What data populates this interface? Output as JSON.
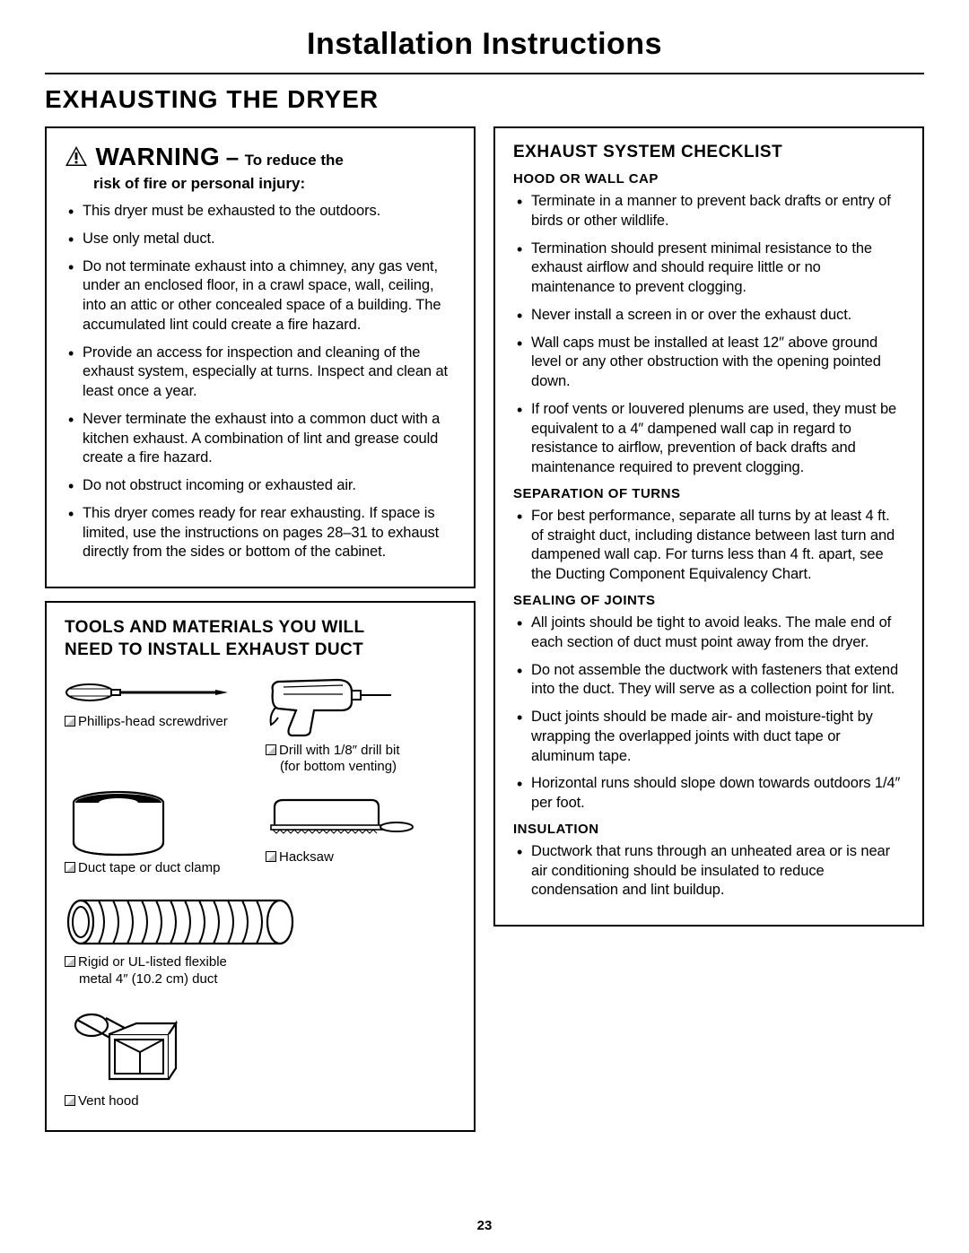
{
  "page_title": "Installation Instructions",
  "section_title": "EXHAUSTING THE DRYER",
  "page_number": "23",
  "warning": {
    "word": "WARNING",
    "tail": "To reduce the",
    "sub": "risk of fire or personal injury:",
    "bullets": [
      "This dryer must be exhausted to the outdoors.",
      "Use only metal duct.",
      "Do not terminate exhaust into a chimney, any gas vent, under an enclosed floor, in a crawl space, wall, ceiling, into an attic or other concealed space of a building. The accumulated lint could create a fire hazard.",
      "Provide an access for inspection and cleaning of the exhaust system, especially at turns. Inspect and clean at least once a year.",
      "Never terminate the exhaust into a common duct with a kitchen exhaust. A combination of lint and grease could create a fire hazard.",
      "Do not obstruct incoming or exhausted air.",
      "This dryer comes ready for rear exhausting. If space is limited, use the instructions on pages 28–31 to exhaust directly from the sides or bottom of the cabinet."
    ]
  },
  "tools": {
    "title_l1": "TOOLS AND MATERIALS YOU WILL",
    "title_l2": "NEED TO INSTALL EXHAUST DUCT",
    "items": {
      "screwdriver": "Phillips-head screwdriver",
      "drill_l1": "Drill with 1/8″ drill bit",
      "drill_l2": "(for bottom venting)",
      "tape": "Duct tape or duct clamp",
      "hacksaw": "Hacksaw",
      "duct_l1": "Rigid or UL-listed flexible",
      "duct_l2": "metal 4″ (10.2 cm) duct",
      "venthood": "Vent hood"
    }
  },
  "checklist": {
    "title": "EXHAUST SYSTEM CHECKLIST",
    "sections": [
      {
        "heading": "HOOD OR WALL CAP",
        "bullets": [
          "Terminate in a manner to prevent back drafts or entry of birds or other wildlife.",
          "Termination should present minimal resistance to the exhaust airflow and should require little or no maintenance to prevent clogging.",
          "Never install a screen in or over the exhaust duct.",
          "Wall caps must be installed at least 12″ above ground level or any other obstruction with the opening pointed down.",
          "If roof vents or louvered plenums are used, they must be equivalent to a 4″ dampened wall cap in regard to resistance to airflow, prevention of back drafts and maintenance required to prevent clogging."
        ]
      },
      {
        "heading": "SEPARATION OF TURNS",
        "bullets": [
          "For best performance, separate all turns by at least 4 ft. of straight duct, including distance between last turn and dampened wall cap. For turns less than 4 ft. apart, see the Ducting Component Equivalency Chart."
        ]
      },
      {
        "heading": "SEALING OF JOINTS",
        "bullets": [
          "All joints should be tight to avoid leaks. The male end of each section of duct must point away from the dryer.",
          "Do not assemble the ductwork with fasteners that extend into the duct. They will serve as a collection point for lint.",
          "Duct joints should be made air- and moisture-tight by wrapping the overlapped joints with duct tape or aluminum tape.",
          "Horizontal runs should slope down towards outdoors 1/4″ per foot."
        ]
      },
      {
        "heading": "INSULATION",
        "bullets": [
          "Ductwork that runs through an unheated area or is near air conditioning should be insulated to reduce condensation and lint buildup."
        ]
      }
    ]
  }
}
